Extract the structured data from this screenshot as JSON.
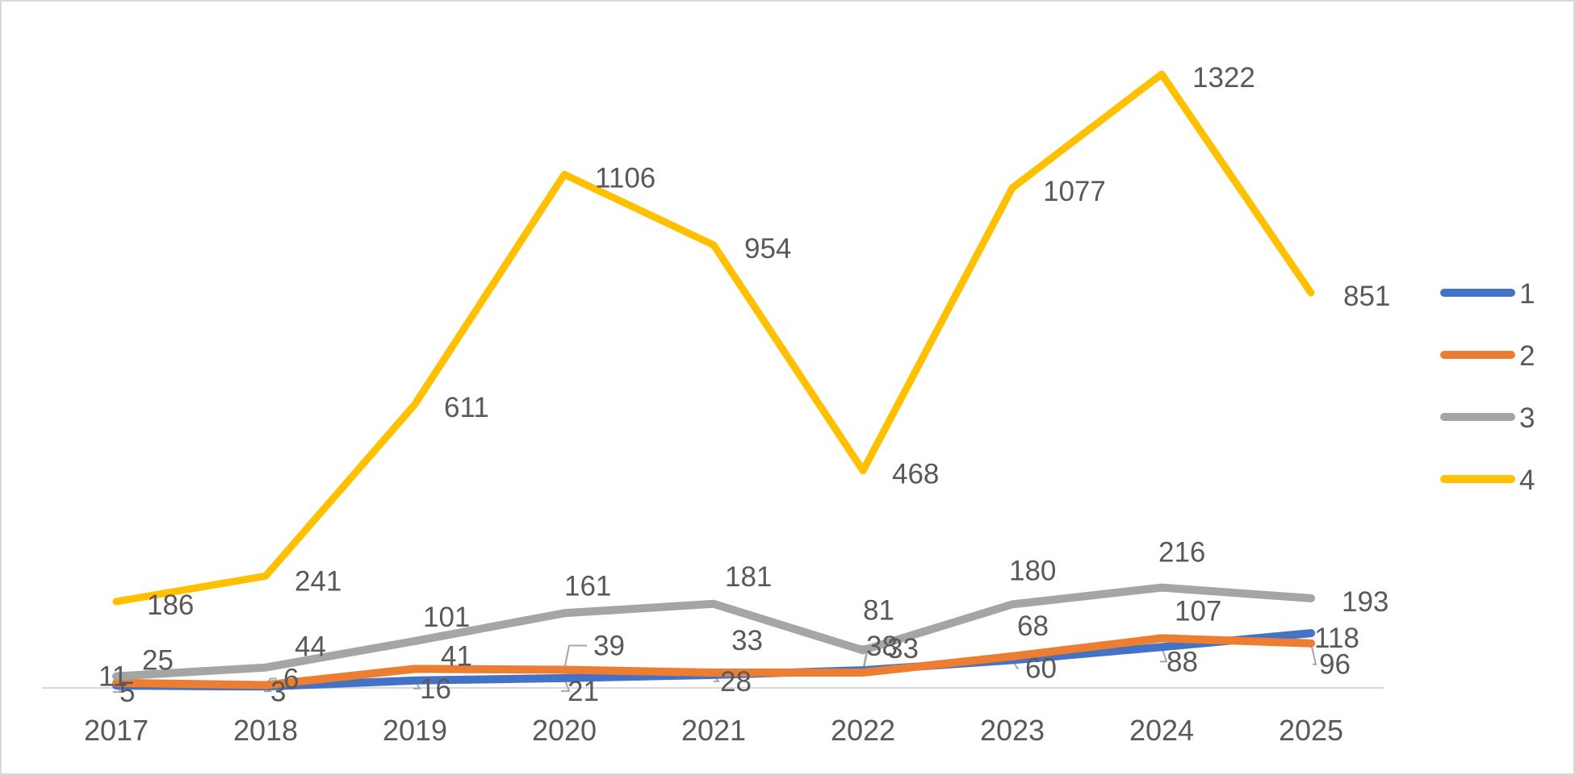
{
  "chart_data": {
    "type": "line",
    "title": "",
    "xlabel": "",
    "ylabel": "",
    "categories": [
      "2017",
      "2018",
      "2019",
      "2020",
      "2021",
      "2022",
      "2023",
      "2024",
      "2025"
    ],
    "ylim": [
      0,
      1380
    ],
    "grid": false,
    "legend_position": "right",
    "series": [
      {
        "name": "1",
        "color": "#4472C4",
        "values": [
          5,
          3,
          16,
          21,
          28,
          38,
          60,
          88,
          118
        ]
      },
      {
        "name": "2",
        "color": "#ED7D31",
        "values": [
          11,
          6,
          41,
          39,
          33,
          33,
          68,
          107,
          96
        ]
      },
      {
        "name": "3",
        "color": "#A5A5A5",
        "values": [
          25,
          44,
          101,
          161,
          181,
          81,
          180,
          216,
          193
        ]
      },
      {
        "name": "4",
        "color": "#FFC000",
        "values": [
          186,
          241,
          611,
          1106,
          954,
          468,
          1077,
          1322,
          851
        ]
      }
    ]
  }
}
